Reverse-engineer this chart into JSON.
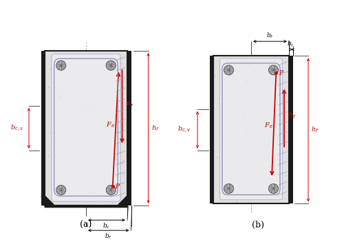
{
  "fig_width": 5.0,
  "fig_height": 3.55,
  "dpi": 100,
  "bg_color": "#ffffff",
  "red_color": "#cc0000",
  "black_color": "#000000",
  "label_a": "(a)",
  "label_b": "(b)"
}
